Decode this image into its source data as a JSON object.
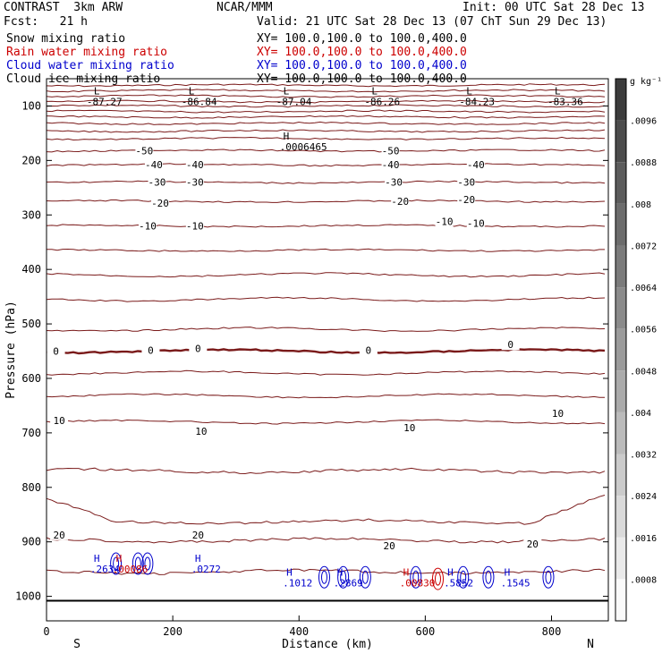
{
  "header": {
    "left1": "CONTRAST  3km ARW",
    "left2": "Fcst:   21 h",
    "center": "NCAR/MMM",
    "init": "Init: 00 UTC Sat 28 Dec 13",
    "valid": "Valid: 21 UTC Sat 28 Dec 13 (07 ChT Sun 29 Dec 13)",
    "fields": [
      {
        "name": "Snow mixing ratio",
        "xy": "XY= 100.0,100.0 to 100.0,400.0",
        "color": "#000000"
      },
      {
        "name": "Rain water mixing ratio",
        "xy": "XY= 100.0,100.0 to 100.0,400.0",
        "color": "#cc0000"
      },
      {
        "name": "Cloud water mixing ratio",
        "xy": "XY= 100.0,100.0 to 100.0,400.0",
        "color": "#0000cc"
      },
      {
        "name": "Cloud ice mixing ratio",
        "xy": "XY= 100.0,100.0 to 100.0,400.0",
        "color": "#000000"
      }
    ]
  },
  "chart_data": {
    "type": "contour",
    "xlabel": "Distance (km)",
    "ylabel": "Pressure (hPa)",
    "xlim": [
      0,
      890
    ],
    "ylim": [
      1045,
      50
    ],
    "x_ticks": [
      0,
      200,
      400,
      600,
      800
    ],
    "x_tick_labels": [
      "0",
      "200",
      "400",
      "600",
      "800"
    ],
    "y_ticks": [
      100,
      200,
      300,
      400,
      500,
      600,
      700,
      800,
      900,
      1000
    ],
    "y_tick_labels": [
      "100",
      "200",
      "300",
      "400",
      "500",
      "600",
      "700",
      "800",
      "900",
      "1000"
    ],
    "end_labels": {
      "left": "S",
      "right": "N"
    },
    "contour_color": "#7a1a1a",
    "ground_level_hPa": 1008,
    "isotherm_levels": [
      {
        "p": 62
      },
      {
        "p": 72
      },
      {
        "p": 82
      },
      {
        "p": 92
      },
      {
        "p": 100
      },
      {
        "p": 110
      },
      {
        "p": 120
      },
      {
        "p": 132
      },
      {
        "p": 146
      },
      {
        "p": 160
      },
      {
        "p": 182,
        "label": "-50"
      },
      {
        "p": 208,
        "label": "-40"
      },
      {
        "p": 240,
        "label": "-30"
      },
      {
        "p": 275,
        "label": "-20"
      },
      {
        "p": 320,
        "label": "-10"
      },
      {
        "p": 365
      },
      {
        "p": 410
      },
      {
        "p": 455
      },
      {
        "p": 510
      },
      {
        "p": 550,
        "label": "0",
        "bold": true
      },
      {
        "p": 590
      },
      {
        "p": 632
      },
      {
        "p": 680,
        "label": "10"
      },
      {
        "p": 770
      },
      {
        "p": 850
      },
      {
        "p": 897,
        "label": "20"
      },
      {
        "p": 955
      }
    ],
    "contour_labels": [
      {
        "x": 155,
        "p": 182,
        "text": "-50"
      },
      {
        "x": 545,
        "p": 182,
        "text": "-50"
      },
      {
        "x": 170,
        "p": 208,
        "text": "-40"
      },
      {
        "x": 235,
        "p": 208,
        "text": "-40"
      },
      {
        "x": 545,
        "p": 208,
        "text": "-40"
      },
      {
        "x": 680,
        "p": 208,
        "text": "-40"
      },
      {
        "x": 175,
        "p": 240,
        "text": "-30"
      },
      {
        "x": 235,
        "p": 240,
        "text": "-30"
      },
      {
        "x": 550,
        "p": 240,
        "text": "-30"
      },
      {
        "x": 665,
        "p": 240,
        "text": "-30"
      },
      {
        "x": 180,
        "p": 278,
        "text": "-20"
      },
      {
        "x": 560,
        "p": 275,
        "text": "-20"
      },
      {
        "x": 665,
        "p": 272,
        "text": "-20"
      },
      {
        "x": 160,
        "p": 320,
        "text": "-10"
      },
      {
        "x": 235,
        "p": 320,
        "text": "-10"
      },
      {
        "x": 630,
        "p": 312,
        "text": "-10"
      },
      {
        "x": 680,
        "p": 315,
        "text": "-10"
      },
      {
        "x": 15,
        "p": 550,
        "text": "0"
      },
      {
        "x": 165,
        "p": 548,
        "text": "0"
      },
      {
        "x": 240,
        "p": 545,
        "text": "0"
      },
      {
        "x": 510,
        "p": 548,
        "text": "0"
      },
      {
        "x": 735,
        "p": 538,
        "text": "0"
      },
      {
        "x": 20,
        "p": 677,
        "text": "10"
      },
      {
        "x": 245,
        "p": 697,
        "text": "10"
      },
      {
        "x": 575,
        "p": 690,
        "text": "10"
      },
      {
        "x": 810,
        "p": 664,
        "text": "10"
      },
      {
        "x": 20,
        "p": 887,
        "text": "20"
      },
      {
        "x": 240,
        "p": 887,
        "text": "20"
      },
      {
        "x": 543,
        "p": 907,
        "text": "20"
      },
      {
        "x": 770,
        "p": 904,
        "text": "20"
      }
    ],
    "minima": [
      {
        "x": 75,
        "p": 82,
        "value": "-87.27"
      },
      {
        "x": 225,
        "p": 82,
        "value": "-86.84"
      },
      {
        "x": 375,
        "p": 82,
        "value": "-87.04"
      },
      {
        "x": 515,
        "p": 82,
        "value": "-86.26"
      },
      {
        "x": 665,
        "p": 82,
        "value": "-84.23"
      },
      {
        "x": 805,
        "p": 82,
        "value": "-83.36"
      }
    ],
    "maxima": [
      {
        "x": 375,
        "p": 165,
        "value": ".0006465",
        "color": "#000000"
      },
      {
        "x": 75,
        "p": 940,
        "value": ".2634",
        "color": "#0000cc"
      },
      {
        "x": 110,
        "p": 940,
        "value": ".00086",
        "color": "#cc0000"
      },
      {
        "x": 235,
        "p": 940,
        "value": ".0272",
        "color": "#0000cc"
      },
      {
        "x": 380,
        "p": 965,
        "value": ".1012",
        "color": "#0000cc"
      },
      {
        "x": 460,
        "p": 965,
        "value": ".2869",
        "color": "#0000cc"
      },
      {
        "x": 565,
        "p": 965,
        "value": ".00830",
        "color": "#cc0000"
      },
      {
        "x": 635,
        "p": 965,
        "value": ".5852",
        "color": "#0000cc"
      },
      {
        "x": 725,
        "p": 965,
        "value": ".1545",
        "color": "#0000cc"
      }
    ],
    "colorbar": {
      "unit": "g kg⁻¹",
      "labels": [
        ".0096",
        ".0088",
        ".008",
        ".0072",
        ".0064",
        ".0056",
        ".0048",
        ".004",
        ".0032",
        ".0024",
        ".0016",
        ".0008"
      ]
    }
  }
}
